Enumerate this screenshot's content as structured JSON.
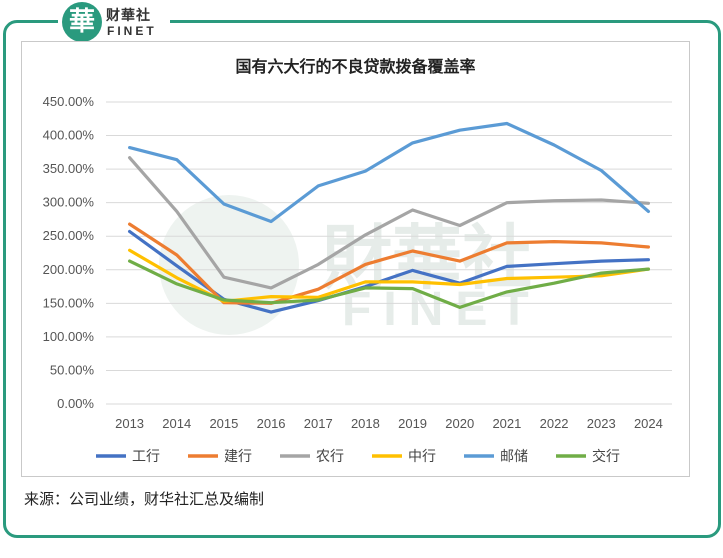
{
  "logo": {
    "badge": "華",
    "cn": "财華社",
    "en": "FINET"
  },
  "watermark": {
    "cn": "財華社",
    "en": "FINET"
  },
  "source_note": "来源：公司业绩，财华社汇总及编制",
  "chart_data": {
    "type": "line",
    "title": "国有六大行的不良贷款拨备覆盖率",
    "xlabel": "",
    "ylabel": "",
    "ylim": [
      0,
      450
    ],
    "yticks": [
      0,
      50,
      100,
      150,
      200,
      250,
      300,
      350,
      400,
      450
    ],
    "ytick_labels": [
      "0.00%",
      "50.00%",
      "100.00%",
      "150.00%",
      "200.00%",
      "250.00%",
      "300.00%",
      "350.00%",
      "400.00%",
      "450.00%"
    ],
    "categories": [
      "2013",
      "2014",
      "2015",
      "2016",
      "2017",
      "2018",
      "2019",
      "2020",
      "2021",
      "2022",
      "2023",
      "2024"
    ],
    "grid": true,
    "legend_position": "bottom",
    "series": [
      {
        "name": "工行",
        "color": "#4472c4",
        "values": [
          257,
          206,
          156,
          137,
          154,
          175,
          199,
          180,
          205,
          209,
          213,
          215
        ]
      },
      {
        "name": "建行",
        "color": "#ed7d31",
        "values": [
          268,
          222,
          151,
          150,
          171,
          208,
          228,
          213,
          240,
          242,
          240,
          234
        ]
      },
      {
        "name": "农行",
        "color": "#a5a5a5",
        "values": [
          367,
          287,
          189,
          173,
          208,
          252,
          289,
          266,
          300,
          303,
          304,
          299
        ]
      },
      {
        "name": "中行",
        "color": "#ffc000",
        "values": [
          229,
          188,
          153,
          160,
          159,
          182,
          182,
          178,
          187,
          189,
          191,
          201
        ]
      },
      {
        "name": "邮储",
        "color": "#5b9bd5",
        "values": [
          382,
          364,
          298,
          272,
          325,
          347,
          389,
          408,
          418,
          386,
          348,
          287
        ]
      },
      {
        "name": "交行",
        "color": "#70ad47",
        "values": [
          213,
          179,
          155,
          151,
          155,
          173,
          172,
          144,
          167,
          180,
          195,
          201
        ]
      }
    ]
  }
}
